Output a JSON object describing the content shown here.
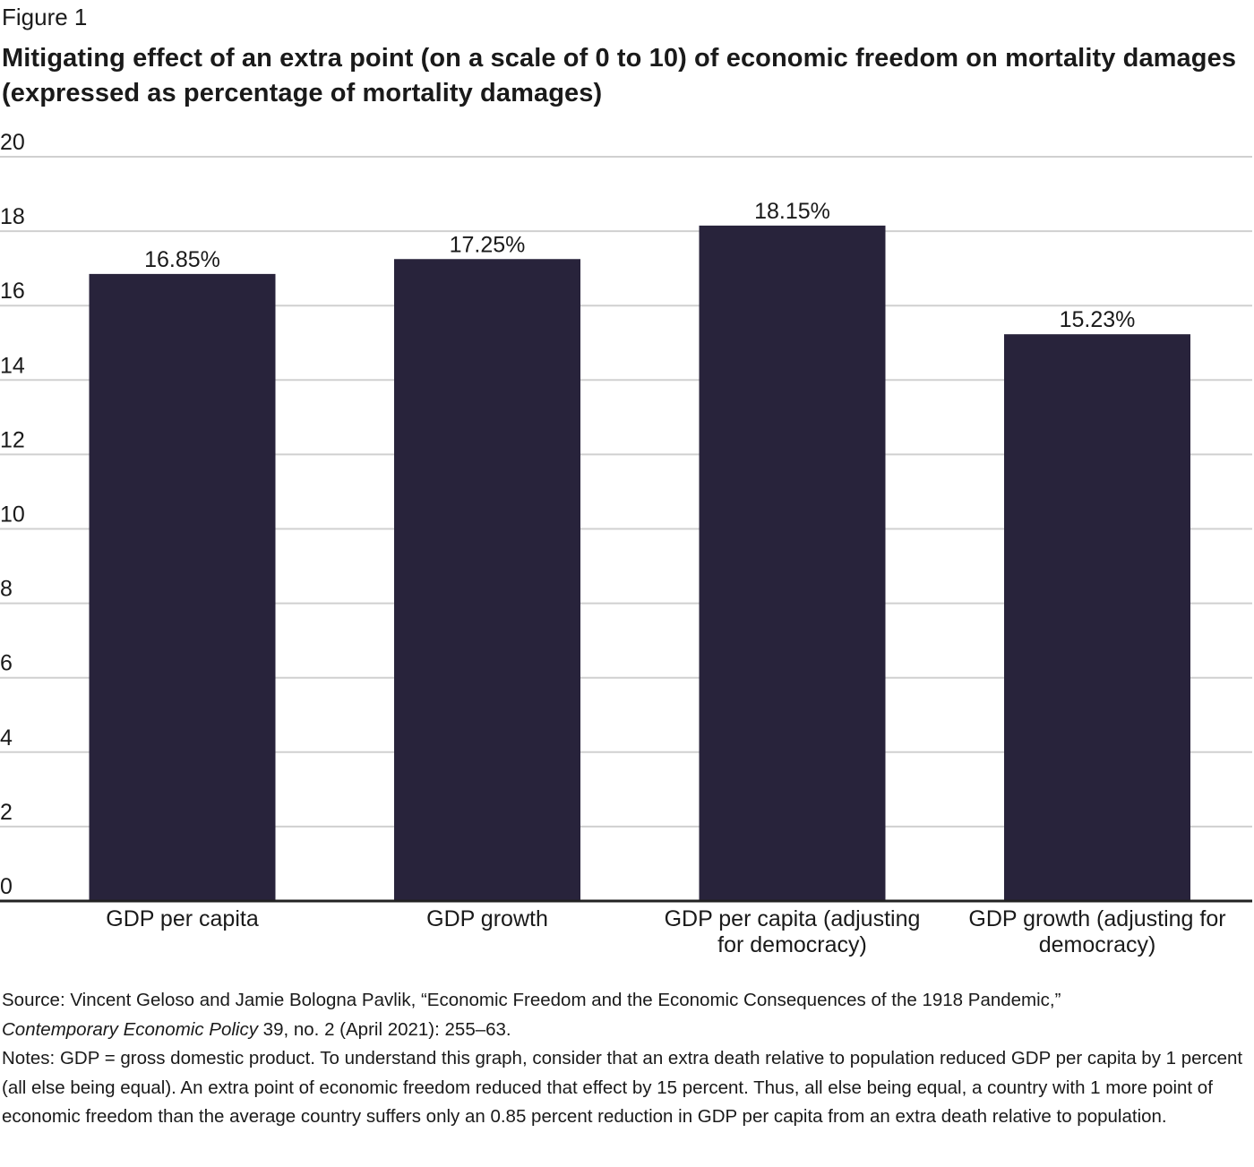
{
  "figure_label": "Figure 1",
  "title": "Mitigating effect of an extra point (on a scale of 0 to 10) of economic freedom on mortality damages (expressed as percentage of mortality damages)",
  "chart_data": {
    "type": "bar",
    "title": "Mitigating effect of an extra point (on a scale of 0 to 10) of economic freedom on mortality damages (expressed as percentage of mortality damages)",
    "categories": [
      [
        "GDP per capita"
      ],
      [
        "GDP growth"
      ],
      [
        "GDP per capita (adjusting",
        "for democracy)"
      ],
      [
        "GDP growth (adjusting for",
        "democracy)"
      ]
    ],
    "values": [
      16.85,
      17.25,
      18.15,
      15.23
    ],
    "data_labels": [
      "16.85%",
      "17.25%",
      "18.15%",
      "15.23%"
    ],
    "ylim": [
      0,
      20
    ],
    "yticks": [
      0,
      2,
      4,
      6,
      8,
      10,
      12,
      14,
      16,
      18,
      20
    ],
    "grid": true,
    "bar_color": "#28233b",
    "grid_color": "#d0d0d0",
    "axis_color": "#222222"
  },
  "source": {
    "prefix": "Source: Vincent Geloso and Jamie Bologna Pavlik, “Economic Freedom and the Economic Consequences of the 1918 Pandemic,”",
    "journal": "Contemporary Economic Policy",
    "citation": " 39, no. 2 (April 2021): 255–63."
  },
  "notes": "Notes: GDP = gross domestic product. To understand this graph, consider that an extra death relative to population reduced GDP per capita by 1 percent (all else being equal). An extra point of economic freedom reduced that effect by 15 percent. Thus, all else being equal, a country with 1 more point of economic freedom than the average country suffers only an 0.85 percent reduction in GDP per capita from an extra death relative to population."
}
